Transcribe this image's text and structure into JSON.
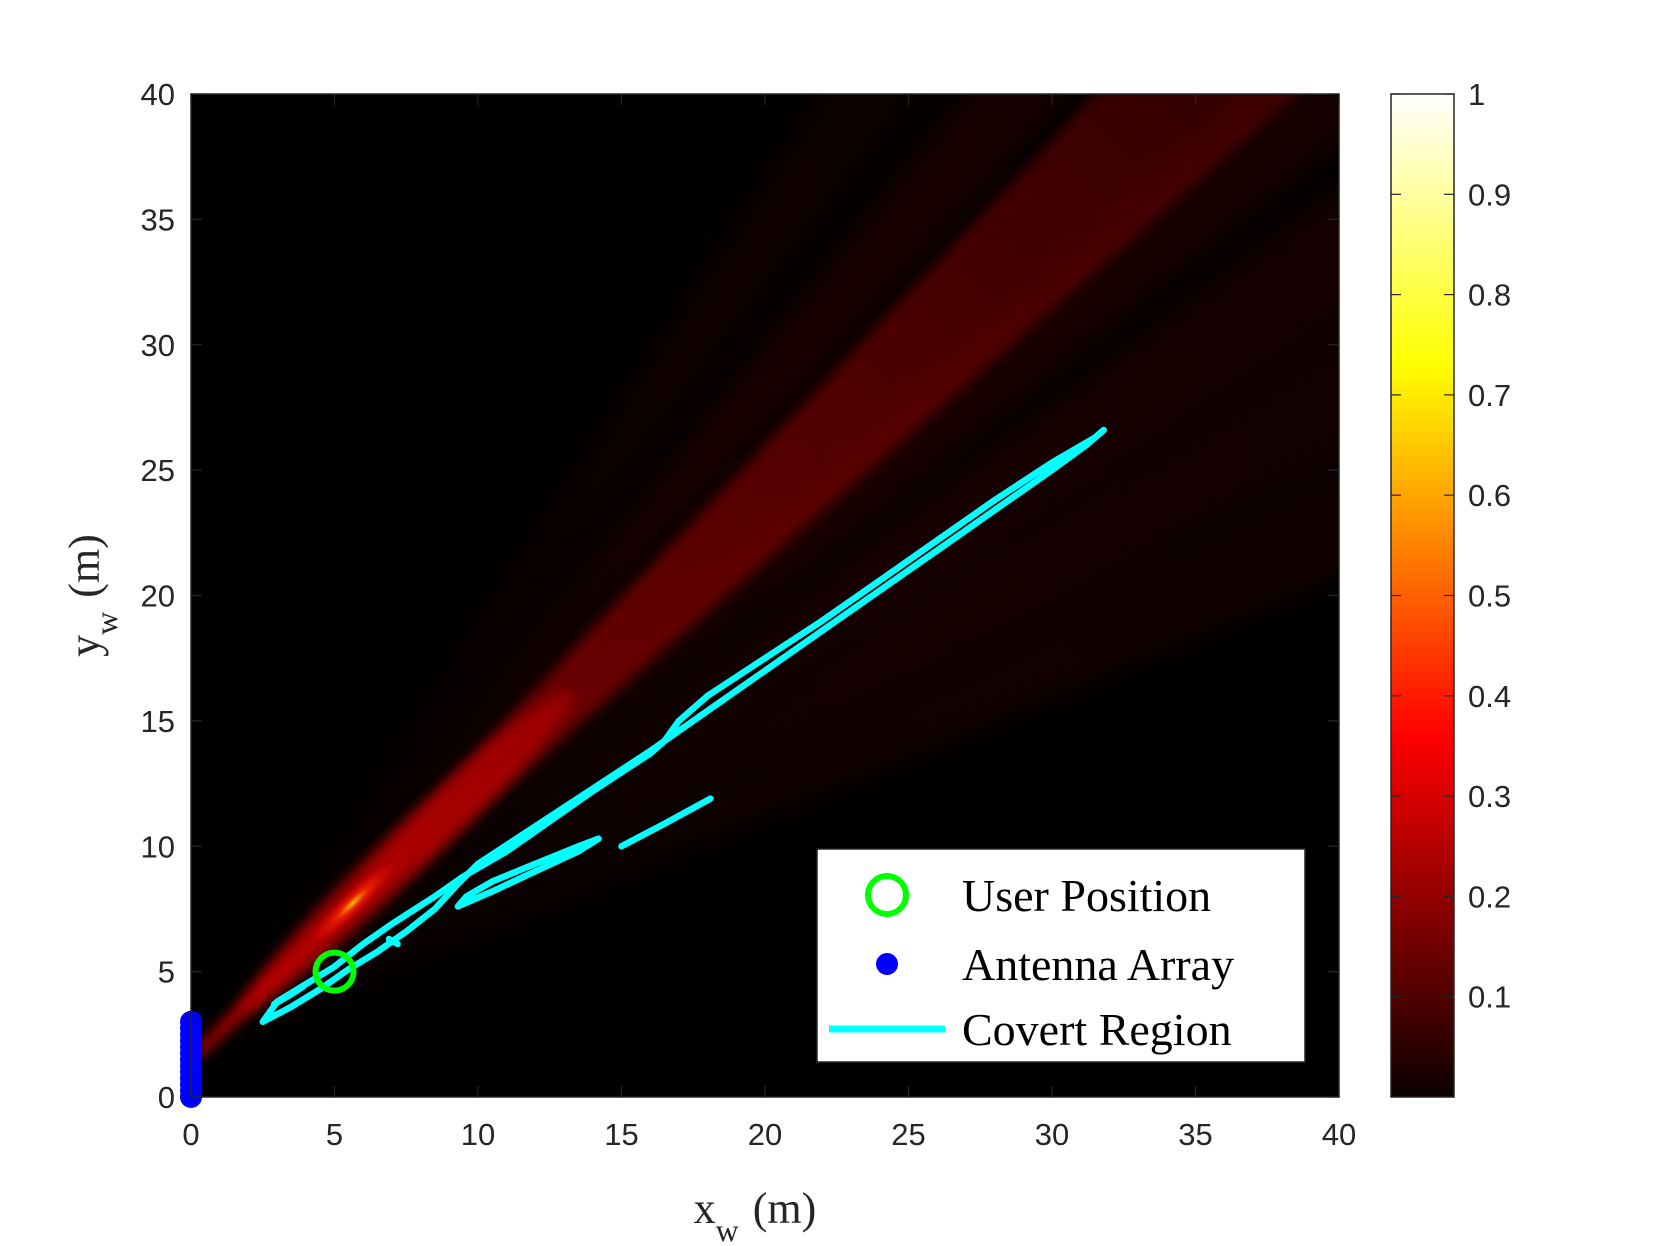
{
  "chart_data": {
    "type": "heatmap",
    "title": "",
    "xlabel": "x",
    "xlabel_sub": "w",
    "xlabel_unit": "(m)",
    "ylabel": "y",
    "ylabel_sub": "w",
    "ylabel_unit": "(m)",
    "xlim": [
      0,
      40
    ],
    "ylim": [
      0,
      40
    ],
    "xticks": [
      0,
      5,
      10,
      15,
      20,
      25,
      30,
      35,
      40
    ],
    "yticks": [
      0,
      5,
      10,
      15,
      20,
      25,
      30,
      35,
      40
    ],
    "colorbar": {
      "colormap": "hot",
      "range": [
        0,
        1
      ],
      "ticks": [
        0.1,
        0.2,
        0.3,
        0.4,
        0.5,
        0.6,
        0.7,
        0.8,
        0.9,
        1
      ],
      "tick_labels": [
        "0.1",
        "0.2",
        "0.3",
        "0.4",
        "0.5",
        "0.6",
        "0.7",
        "0.8",
        "0.9",
        "1"
      ]
    },
    "beam_direction_deg": 45,
    "legend": {
      "placement": "bottom-right",
      "entries": [
        "User Position",
        "Antenna Array",
        "Covert Region"
      ]
    },
    "series": [
      {
        "name": "User Position",
        "kind": "marker-circle",
        "color": "#00ff00",
        "points": [
          [
            5,
            5
          ]
        ]
      },
      {
        "name": "Antenna Array",
        "kind": "marker-dot",
        "color": "#0000ff",
        "points": [
          [
            0,
            0.0
          ],
          [
            0,
            0.25
          ],
          [
            0,
            0.5
          ],
          [
            0,
            0.75
          ],
          [
            0,
            1.0
          ],
          [
            0,
            1.25
          ],
          [
            0,
            1.5
          ],
          [
            0,
            1.75
          ],
          [
            0,
            2.0
          ],
          [
            0,
            2.25
          ],
          [
            0,
            2.5
          ],
          [
            0,
            2.75
          ],
          [
            0,
            3.0
          ]
        ]
      },
      {
        "name": "Covert Region",
        "kind": "contour",
        "color": "#00ffff",
        "paths": [
          [
            [
              2.5,
              3.0
            ],
            [
              3.5,
              3.6
            ],
            [
              4.5,
              4.3
            ],
            [
              5.5,
              5.1
            ],
            [
              6.5,
              5.8
            ],
            [
              7.5,
              6.6
            ],
            [
              8.5,
              7.5
            ],
            [
              9.3,
              8.5
            ],
            [
              10.0,
              9.3
            ],
            [
              12.0,
              10.8
            ],
            [
              14.0,
              12.3
            ],
            [
              16.0,
              13.8
            ],
            [
              18.0,
              15.4
            ],
            [
              20.0,
              17.0
            ],
            [
              22.0,
              18.6
            ],
            [
              24.0,
              20.2
            ],
            [
              26.0,
              21.8
            ],
            [
              28.0,
              23.4
            ],
            [
              30.0,
              25.0
            ],
            [
              31.2,
              26.0
            ],
            [
              31.8,
              26.6
            ],
            [
              31.5,
              26.3
            ],
            [
              30.0,
              25.3
            ],
            [
              28.0,
              23.8
            ],
            [
              26.0,
              22.2
            ],
            [
              24.0,
              20.6
            ],
            [
              22.0,
              19.0
            ],
            [
              20.0,
              17.5
            ],
            [
              18.0,
              16.0
            ],
            [
              17.0,
              15.0
            ],
            [
              16.5,
              14.2
            ],
            [
              16.0,
              13.7
            ],
            [
              14.0,
              12.2
            ],
            [
              12.5,
              11.0
            ],
            [
              11.0,
              9.8
            ],
            [
              9.5,
              8.8
            ],
            [
              8.5,
              8.0
            ],
            [
              7.0,
              6.9
            ],
            [
              6.0,
              6.1
            ],
            [
              5.0,
              5.2
            ],
            [
              4.0,
              4.5
            ],
            [
              3.0,
              3.8
            ],
            [
              2.5,
              3.0
            ]
          ],
          [
            [
              9.3,
              7.6
            ],
            [
              10.5,
              8.2
            ],
            [
              12.0,
              9.0
            ],
            [
              13.5,
              9.8
            ],
            [
              14.2,
              10.3
            ],
            [
              13.5,
              10.0
            ],
            [
              12.0,
              9.3
            ],
            [
              10.5,
              8.6
            ],
            [
              9.6,
              8.0
            ],
            [
              9.3,
              7.6
            ]
          ],
          [
            [
              2.9,
              3.7
            ],
            [
              3.5,
              4.1
            ],
            [
              3.9,
              4.4
            ]
          ],
          [
            [
              15.0,
              10.0
            ],
            [
              16.5,
              10.9
            ],
            [
              18.1,
              11.9
            ]
          ],
          [
            [
              7.2,
              6.1
            ],
            [
              6.9,
              6.3
            ]
          ]
        ]
      }
    ]
  }
}
